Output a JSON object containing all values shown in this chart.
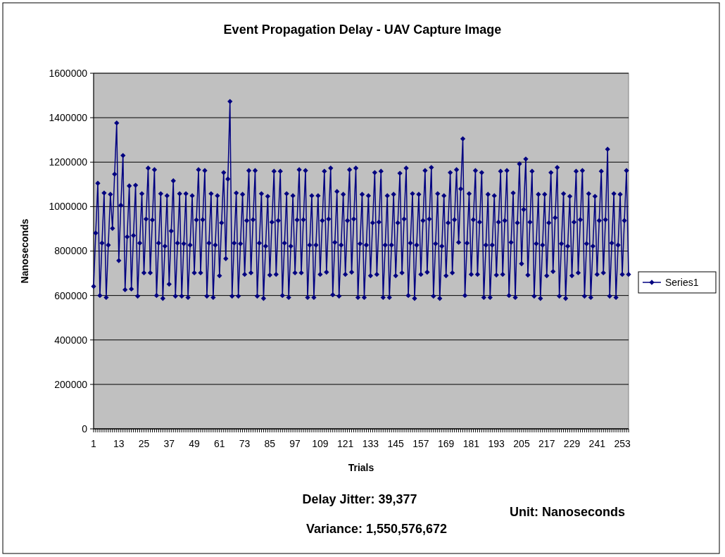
{
  "chart_data": {
    "type": "line",
    "title": "Event Propagation Delay - UAV Capture Image",
    "xlabel": "Trials",
    "ylabel": "Nanoseconds",
    "categories": [
      "1",
      null,
      null,
      null,
      null,
      null,
      null,
      null,
      null,
      null,
      null,
      null,
      "13",
      null,
      null,
      null,
      null,
      null,
      null,
      null,
      null,
      null,
      null,
      null,
      "25",
      null,
      null,
      null,
      null,
      null,
      null,
      null,
      null,
      null,
      null,
      null,
      "37",
      null,
      null,
      null,
      null,
      null,
      null,
      null,
      null,
      null,
      null,
      null,
      "49",
      null,
      null,
      null,
      null,
      null,
      null,
      null,
      null,
      null,
      null,
      null,
      "61",
      null,
      null,
      null,
      null,
      null,
      null,
      null,
      null,
      null,
      null,
      null,
      "73",
      null,
      null,
      null,
      null,
      null,
      null,
      null,
      null,
      null,
      null,
      null,
      "85",
      null,
      null,
      null,
      null,
      null,
      null,
      null,
      null,
      null,
      null,
      null,
      "97",
      null,
      null,
      null,
      null,
      null,
      null,
      null,
      null,
      null,
      null,
      null,
      "109",
      null,
      null,
      null,
      null,
      null,
      null,
      null,
      null,
      null,
      null,
      null,
      "121",
      null,
      null,
      null,
      null,
      null,
      null,
      null,
      null,
      null,
      null,
      null,
      "133",
      null,
      null,
      null,
      null,
      null,
      null,
      null,
      null,
      null,
      null,
      null,
      "145",
      null,
      null,
      null,
      null,
      null,
      null,
      null,
      null,
      null,
      null,
      null,
      "157",
      null,
      null,
      null,
      null,
      null,
      null,
      null,
      null,
      null,
      null,
      null,
      "169",
      null,
      null,
      null,
      null,
      null,
      null,
      null,
      null,
      null,
      null,
      null,
      "181",
      null,
      null,
      null,
      null,
      null,
      null,
      null,
      null,
      null,
      null,
      null,
      "193",
      null,
      null,
      null,
      null,
      null,
      null,
      null,
      null,
      null,
      null,
      null,
      "205",
      null,
      null,
      null,
      null,
      null,
      null,
      null,
      null,
      null,
      null,
      null,
      "217",
      null,
      null,
      null,
      null,
      null,
      null,
      null,
      null,
      null,
      null,
      null,
      "229",
      null,
      null,
      null,
      null,
      null,
      null,
      null,
      null,
      null,
      null,
      null,
      "241",
      null,
      null,
      null,
      null,
      null,
      null,
      null,
      null,
      null,
      null,
      null,
      "253",
      null,
      null,
      null
    ],
    "series": [
      {
        "name": "Series1",
        "color": "#000080",
        "values": [
          641000,
          881000,
          1105000,
          600000,
          836000,
          1061000,
          591000,
          827000,
          1055000,
          902000,
          1146000,
          1376000,
          757000,
          1006000,
          1230000,
          626000,
          864000,
          1093000,
          629000,
          870000,
          1096000,
          597000,
          836000,
          1058000,
          702000,
          944000,
          1173000,
          702000,
          940000,
          1166000,
          600000,
          836000,
          1058000,
          587000,
          822000,
          1049000,
          651000,
          890000,
          1116000,
          597000,
          836000,
          1058000,
          597000,
          833000,
          1058000,
          591000,
          827000,
          1049000,
          702000,
          940000,
          1166000,
          702000,
          941000,
          1162000,
          597000,
          836000,
          1058000,
          591000,
          827000,
          1049000,
          689000,
          927000,
          1153000,
          766000,
          1124000,
          1473000,
          597000,
          836000,
          1061000,
          597000,
          833000,
          1055000,
          695000,
          937000,
          1162000,
          702000,
          941000,
          1162000,
          597000,
          836000,
          1058000,
          587000,
          822000,
          1046000,
          692000,
          930000,
          1159000,
          695000,
          937000,
          1159000,
          600000,
          836000,
          1058000,
          591000,
          822000,
          1049000,
          702000,
          940000,
          1166000,
          702000,
          941000,
          1162000,
          591000,
          827000,
          1049000,
          591000,
          827000,
          1049000,
          695000,
          937000,
          1159000,
          705000,
          944000,
          1173000,
          603000,
          839000,
          1068000,
          597000,
          827000,
          1055000,
          695000,
          937000,
          1166000,
          705000,
          944000,
          1173000,
          591000,
          833000,
          1055000,
          591000,
          827000,
          1049000,
          689000,
          927000,
          1153000,
          695000,
          930000,
          1159000,
          591000,
          827000,
          1049000,
          591000,
          827000,
          1055000,
          689000,
          927000,
          1150000,
          702000,
          944000,
          1173000,
          600000,
          836000,
          1058000,
          587000,
          827000,
          1055000,
          695000,
          937000,
          1162000,
          705000,
          944000,
          1176000,
          597000,
          833000,
          1058000,
          587000,
          822000,
          1049000,
          689000,
          927000,
          1153000,
          702000,
          941000,
          1166000,
          839000,
          1080000,
          1305000,
          600000,
          836000,
          1058000,
          695000,
          941000,
          1162000,
          695000,
          930000,
          1153000,
          591000,
          827000,
          1055000,
          591000,
          827000,
          1049000,
          692000,
          930000,
          1159000,
          695000,
          937000,
          1162000,
          600000,
          839000,
          1061000,
          591000,
          927000,
          1192000,
          743000,
          987000,
          1214000,
          692000,
          930000,
          1159000,
          597000,
          833000,
          1055000,
          587000,
          827000,
          1055000,
          689000,
          927000,
          1153000,
          708000,
          950000,
          1176000,
          597000,
          833000,
          1058000,
          587000,
          822000,
          1046000,
          689000,
          930000,
          1159000,
          702000,
          941000,
          1162000,
          597000,
          833000,
          1058000,
          591000,
          822000,
          1046000,
          695000,
          937000,
          1159000,
          702000,
          941000,
          1258000,
          597000,
          836000,
          1058000,
          591000,
          827000,
          1055000,
          695000,
          937000,
          1162000,
          695000
        ]
      }
    ],
    "ylim": [
      0,
      1600000
    ],
    "yticks": [
      0,
      200000,
      400000,
      600000,
      800000,
      1000000,
      1200000,
      1400000,
      1600000
    ],
    "grid": "y",
    "legend": "right",
    "marker": "diamond",
    "line_style": "solid",
    "annotations": [
      "Delay Jitter: 39,377",
      "Variance: 1,550,576,672",
      "Unit: Nanoseconds"
    ]
  }
}
